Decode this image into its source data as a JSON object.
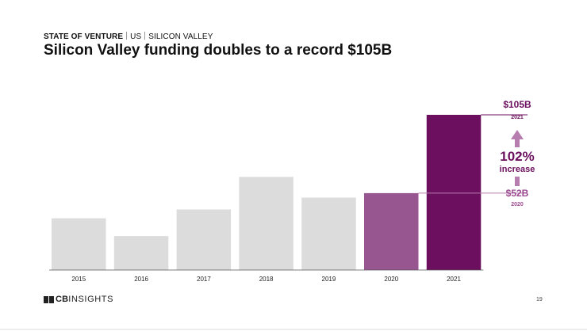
{
  "header": {
    "section": "STATE OF VENTURE",
    "region": "US",
    "subregion": "SILICON VALLEY",
    "title": "Silicon Valley funding doubles to a record $105B"
  },
  "footer": {
    "brand_bold": "CB",
    "brand_rest": "INSIGHTS",
    "page_number": "19"
  },
  "colors": {
    "bar_default": "#dcdcdc",
    "bar_2020": "#985691",
    "bar_2021": "#6b0f5e",
    "accent_light": "#b87daf",
    "accent_label": "#9c4a90"
  },
  "chart_data": {
    "type": "bar",
    "categories": [
      "2015",
      "2016",
      "2017",
      "2018",
      "2019",
      "2020",
      "2021"
    ],
    "values": [
      35,
      23,
      41,
      63,
      49,
      52,
      105
    ],
    "ylim": [
      0,
      105
    ],
    "grid": false,
    "highlights": {
      "2020": "bar_2020",
      "2021": "bar_2021"
    },
    "annotations": {
      "top_value": "$105B",
      "top_year": "2021",
      "pct": "102%",
      "pct_label": "increase",
      "base_value": "$52B",
      "base_year": "2020"
    }
  }
}
